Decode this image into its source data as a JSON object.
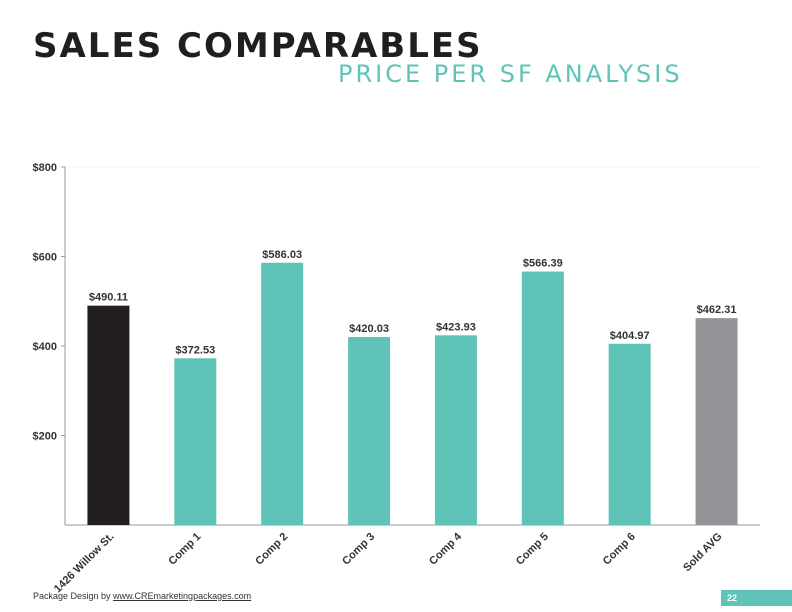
{
  "header": {
    "title": "SALES COMPARABLES",
    "subtitle": "PRICE PER SF ANALYSIS"
  },
  "footer": {
    "text": "Package Design by ",
    "link": "www.CREmarketingpackages.com",
    "page_number": "22"
  },
  "colors": {
    "subject": "#231f20",
    "comp": "#5ec4b8",
    "average": "#939598",
    "accent": "#5ec4b8"
  },
  "chart_data": {
    "type": "bar",
    "title": "",
    "xlabel": "",
    "ylabel": "",
    "ylim": [
      0,
      800
    ],
    "yticks": [
      200,
      400,
      600,
      800
    ],
    "ytick_labels": [
      "$200",
      "$400",
      "$600",
      "$800"
    ],
    "grid": false,
    "categories": [
      "1426 Willow St.",
      "Comp 1",
      "Comp 2",
      "Comp 3",
      "Comp 4",
      "Comp 5",
      "Comp 6",
      "Sold AVG"
    ],
    "values": [
      490.11,
      372.53,
      586.03,
      420.03,
      423.93,
      566.39,
      404.97,
      462.31
    ],
    "value_labels": [
      "$490.11",
      "$372.53",
      "$586.03",
      "$420.03",
      "$423.93",
      "$566.39",
      "$404.97",
      "$462.31"
    ],
    "bar_colors": [
      "#231f20",
      "#5ec4b8",
      "#5ec4b8",
      "#5ec4b8",
      "#5ec4b8",
      "#5ec4b8",
      "#5ec4b8",
      "#939598"
    ]
  }
}
